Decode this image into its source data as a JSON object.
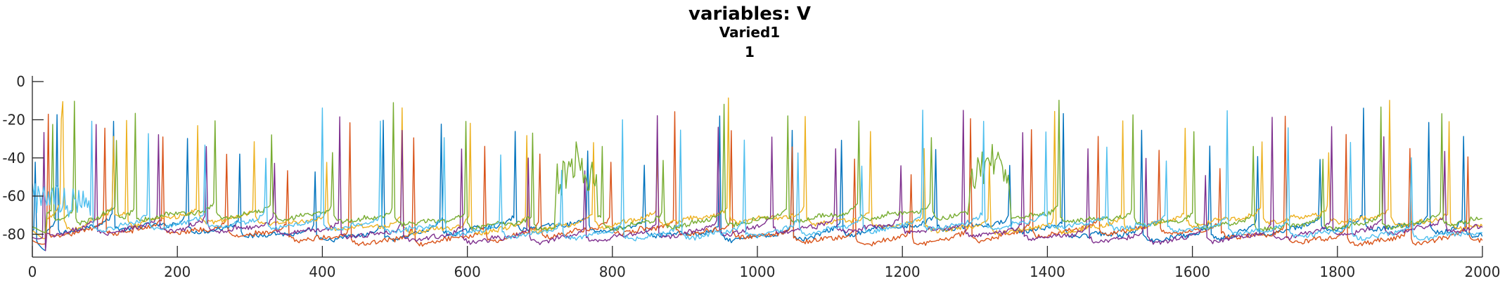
{
  "chart_data": {
    "type": "line",
    "title": "variables: V",
    "subtitle": "Varied1",
    "subtitle2": "1",
    "xlabel": "",
    "ylabel": "",
    "xlim": [
      0,
      2000
    ],
    "ylim": [
      -92,
      3
    ],
    "xticks": [
      0,
      200,
      400,
      600,
      800,
      1000,
      1200,
      1400,
      1600,
      1800,
      2000
    ],
    "yticks": [
      0,
      -20,
      -40,
      -60,
      -80
    ],
    "grid": false,
    "legend": "none",
    "series_colors": [
      "#0072BD",
      "#D95319",
      "#EDB120",
      "#7E2F8E",
      "#77AC30",
      "#4DBEEE"
    ],
    "seeds": [
      [
        11,
        37,
        71,
        95,
        130,
        161,
        188,
        222,
        255,
        281,
        316,
        349,
        372,
        415,
        449,
        474,
        510,
        541,
        563,
        592,
        612,
        642,
        658,
        668
      ],
      [
        7,
        33,
        60,
        89,
        117,
        146,
        175,
        208,
        233,
        266,
        295,
        321,
        349,
        378,
        404,
        431,
        459,
        490,
        518,
        546,
        576,
        604,
        633,
        660
      ],
      [
        14,
        43,
        76,
        102,
        135,
        170,
        201,
        227,
        258,
        287,
        320,
        355,
        385,
        410,
        440,
        470,
        501,
        530,
        565,
        596,
        624,
        651,
        680,
        704
      ],
      [
        5,
        29,
        58,
        80,
        111,
        141,
        170,
        197,
        228,
        254,
        287,
        315,
        340,
        369,
        399,
        428,
        455,
        485,
        512,
        539,
        570,
        597,
        621,
        649
      ],
      [
        19,
        47,
        84,
        110,
        138,
        166,
        199,
        230,
        262,
        290,
        318,
        347,
        380,
        413,
        443,
        472,
        506,
        534,
        561,
        593,
        620,
        648,
        676,
        705
      ],
      [
        3,
        27,
        53,
        79,
        107,
        133,
        160,
        189,
        215,
        243,
        271,
        298,
        327,
        352,
        381,
        409,
        437,
        466,
        494,
        521,
        549,
        577,
        606,
        634
      ]
    ]
  }
}
